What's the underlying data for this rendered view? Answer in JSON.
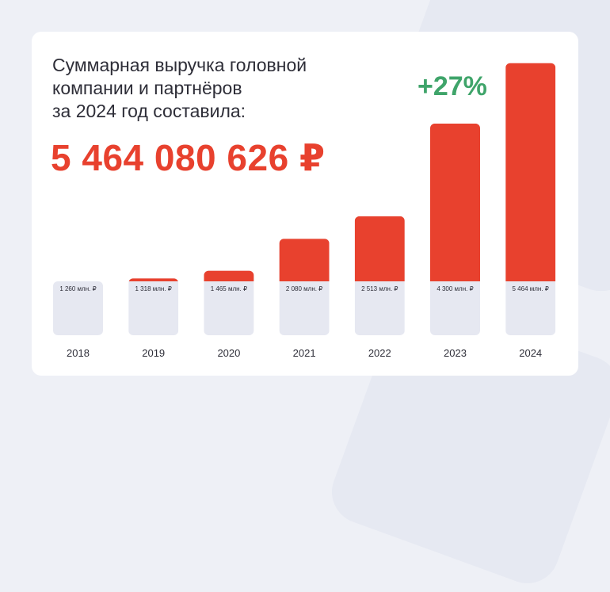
{
  "headline": {
    "line1": "Суммарная выручка головной",
    "line2": "компании и партнёров",
    "line3": "за 2024 год составила:"
  },
  "total": "5 464 080 626 ₽",
  "growth": "+27%",
  "colors": {
    "accent": "#e8412e",
    "bar": "#e6e8f1",
    "growth": "#3fa46a",
    "text": "#2e2e38"
  },
  "chart_data": {
    "type": "bar",
    "unit": "млн. ₽",
    "categories": [
      "2018",
      "2019",
      "2020",
      "2021",
      "2022",
      "2023",
      "2024"
    ],
    "values": [
      1260,
      1318,
      1465,
      2080,
      2513,
      4300,
      5464
    ],
    "value_labels": [
      "1 260 млн. ₽",
      "1 318 млн. ₽",
      "1 465 млн. ₽",
      "2 080 млн. ₽",
      "2  513 млн. ₽",
      "4  300 млн. ₽",
      "5  464 млн. ₽"
    ],
    "annotation": "+27%",
    "grid": false,
    "legend": "none"
  }
}
